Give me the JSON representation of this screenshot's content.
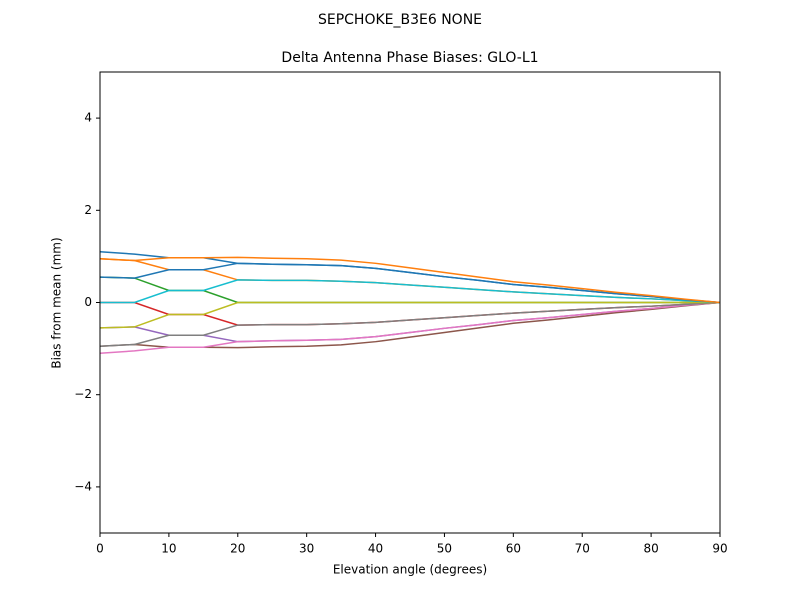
{
  "chart_data": {
    "type": "line",
    "suptitle": "SEPCHOKE_B3E6   NONE",
    "title": "Delta Antenna Phase Biases: GLO-L1",
    "xlabel": "Elevation angle (degrees)",
    "ylabel": "Bias from mean (mm)",
    "x": [
      0,
      5,
      10,
      15,
      20,
      25,
      30,
      35,
      40,
      45,
      50,
      55,
      60,
      65,
      70,
      75,
      80,
      85,
      90
    ],
    "xlim": [
      0,
      90
    ],
    "xticks": [
      0,
      10,
      20,
      30,
      40,
      50,
      60,
      70,
      80,
      90
    ],
    "ylim": [
      -5,
      5
    ],
    "yticks": [
      {
        "value": -4,
        "label": "−4"
      },
      {
        "value": -2,
        "label": "−2"
      },
      0,
      2,
      4
    ],
    "grid": false,
    "series": [
      {
        "color": "#1f77b4",
        "values": [
          1.1,
          1.05,
          0.97,
          0.97,
          0.85,
          0.83,
          0.82,
          0.8,
          0.74,
          0.65,
          0.56,
          0.48,
          0.39,
          0.33,
          0.26,
          0.19,
          0.13,
          0.06,
          0
        ]
      },
      {
        "color": "#ff7f0e",
        "values": [
          0.95,
          0.91,
          0.71,
          0.71,
          0.49,
          0.48,
          0.48,
          0.46,
          0.43,
          0.38,
          0.33,
          0.28,
          0.23,
          0.19,
          0.15,
          0.11,
          0.08,
          0.04,
          0
        ]
      },
      {
        "color": "#2ca02c",
        "values": [
          0.55,
          0.53,
          0.26,
          0.26,
          0,
          0,
          0,
          0,
          0,
          0,
          0,
          0,
          0,
          0,
          0,
          0,
          0,
          0,
          0
        ]
      },
      {
        "color": "#d62728",
        "values": [
          0,
          0,
          -0.26,
          -0.26,
          -0.49,
          -0.48,
          -0.48,
          -0.46,
          -0.43,
          -0.38,
          -0.33,
          -0.28,
          -0.23,
          -0.19,
          -0.15,
          -0.11,
          -0.08,
          -0.04,
          0
        ]
      },
      {
        "color": "#9467bd",
        "values": [
          -0.55,
          -0.53,
          -0.71,
          -0.71,
          -0.85,
          -0.83,
          -0.82,
          -0.8,
          -0.74,
          -0.65,
          -0.56,
          -0.48,
          -0.39,
          -0.33,
          -0.26,
          -0.19,
          -0.13,
          -0.06,
          0
        ]
      },
      {
        "color": "#8c564b",
        "values": [
          -0.95,
          -0.91,
          -0.97,
          -0.97,
          -0.98,
          -0.96,
          -0.95,
          -0.92,
          -0.85,
          -0.75,
          -0.65,
          -0.55,
          -0.45,
          -0.38,
          -0.3,
          -0.22,
          -0.15,
          -0.07,
          0
        ]
      },
      {
        "color": "#e377c2",
        "values": [
          -1.1,
          -1.05,
          -0.97,
          -0.97,
          -0.85,
          -0.83,
          -0.82,
          -0.8,
          -0.74,
          -0.65,
          -0.56,
          -0.48,
          -0.39,
          -0.33,
          -0.26,
          -0.19,
          -0.13,
          -0.06,
          0
        ]
      },
      {
        "color": "#7f7f7f",
        "values": [
          -0.95,
          -0.91,
          -0.71,
          -0.71,
          -0.49,
          -0.48,
          -0.48,
          -0.46,
          -0.43,
          -0.38,
          -0.33,
          -0.28,
          -0.23,
          -0.19,
          -0.15,
          -0.11,
          -0.08,
          -0.04,
          0
        ]
      },
      {
        "color": "#bcbd22",
        "values": [
          -0.55,
          -0.53,
          -0.26,
          -0.26,
          0,
          0,
          0,
          0,
          0,
          0,
          0,
          0,
          0,
          0,
          0,
          0,
          0,
          0,
          0
        ]
      },
      {
        "color": "#17becf",
        "values": [
          0,
          0,
          0.26,
          0.26,
          0.49,
          0.48,
          0.48,
          0.46,
          0.43,
          0.38,
          0.33,
          0.28,
          0.23,
          0.19,
          0.15,
          0.11,
          0.08,
          0.04,
          0
        ]
      },
      {
        "color": "#1f77b4",
        "values": [
          0.55,
          0.53,
          0.71,
          0.71,
          0.85,
          0.83,
          0.82,
          0.8,
          0.74,
          0.65,
          0.56,
          0.48,
          0.39,
          0.33,
          0.26,
          0.19,
          0.13,
          0.06,
          0
        ]
      },
      {
        "color": "#ff7f0e",
        "values": [
          0.95,
          0.91,
          0.97,
          0.97,
          0.98,
          0.96,
          0.95,
          0.92,
          0.85,
          0.75,
          0.65,
          0.55,
          0.45,
          0.38,
          0.3,
          0.22,
          0.15,
          0.07,
          0
        ]
      }
    ]
  }
}
